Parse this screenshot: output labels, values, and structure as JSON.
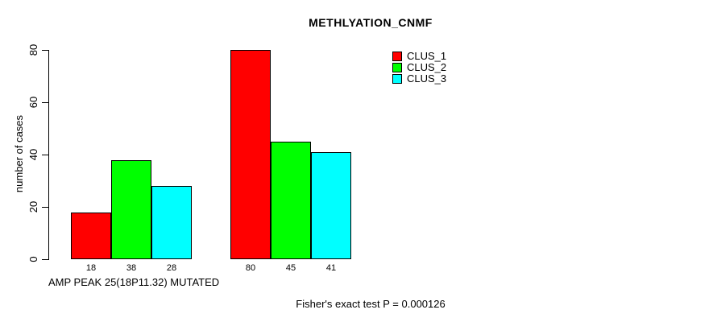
{
  "chart_data": {
    "type": "bar",
    "title": "METHLYATION_CNMF",
    "ylabel": "number of cases",
    "xlabel": "AMP PEAK 25(18P11.32) MUTATED",
    "annotation": "Fisher's exact test P = 0.000126",
    "ylim": [
      0,
      80
    ],
    "yticks": [
      0,
      20,
      40,
      60,
      80
    ],
    "grid": false,
    "legend_position": "top-right",
    "bar_border_color": "#000000",
    "series": [
      {
        "name": "CLUS_1",
        "color": "#ff0000",
        "values": [
          18,
          80
        ]
      },
      {
        "name": "CLUS_2",
        "color": "#00ff00",
        "values": [
          38,
          45
        ]
      },
      {
        "name": "CLUS_3",
        "color": "#00ffff",
        "values": [
          28,
          41
        ]
      }
    ],
    "bar_labels": [
      [
        "18",
        "38",
        "28"
      ],
      [
        "80",
        "45",
        "41"
      ]
    ]
  }
}
